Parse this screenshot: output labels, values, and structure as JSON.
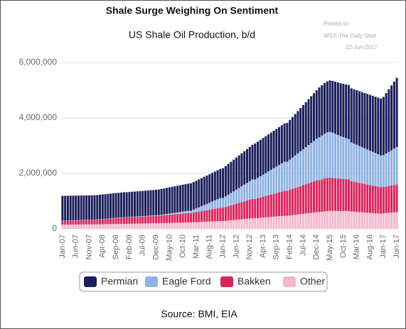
{
  "chart_data": {
    "type": "stacked-bar",
    "title": "Shale Surge Weighing On Sentiment",
    "subtitle": "US Shale Oil Production, b/d",
    "annotation": [
      "Posted on",
      "WSJ: The Daily Shot",
      "22-Jun-2017"
    ],
    "source": "Source: BMI, EIA",
    "categories": [
      "Jan-07",
      null,
      null,
      null,
      null,
      "Jun-07",
      null,
      null,
      null,
      null,
      "Nov-07",
      null,
      null,
      null,
      null,
      "Apr-08",
      null,
      null,
      null,
      null,
      "Sep-08",
      null,
      null,
      null,
      null,
      "Feb-09",
      null,
      null,
      null,
      null,
      "Jul-09",
      null,
      null,
      null,
      null,
      "Dec-09",
      null,
      null,
      null,
      null,
      "May-10",
      null,
      null,
      null,
      null,
      "Oct-10",
      null,
      null,
      null,
      null,
      "Mar-11",
      null,
      null,
      null,
      null,
      "Aug-11",
      null,
      null,
      null,
      null,
      "Jan-12",
      null,
      null,
      null,
      null,
      "Jun-12",
      null,
      null,
      null,
      null,
      "Nov-12",
      null,
      null,
      null,
      null,
      "Apr-13",
      null,
      null,
      null,
      null,
      "Sep-13",
      null,
      null,
      null,
      null,
      "Feb-14",
      null,
      null,
      null,
      null,
      "Jul-14",
      null,
      null,
      null,
      null,
      "Dec-14",
      null,
      null,
      null,
      null,
      "May-15",
      null,
      null,
      null,
      null,
      "Oct-15",
      null,
      null,
      null,
      null,
      "Mar-16",
      null,
      null,
      null,
      null,
      "Aug-16",
      null,
      null,
      null,
      null,
      "Jan-17",
      null,
      null,
      null,
      null,
      "Jun-17"
    ],
    "series": [
      {
        "name": "Permian",
        "color": "#1b1f5c",
        "values": [
          900000,
          898000,
          896000,
          895000,
          893000,
          891000,
          889000,
          887000,
          885000,
          884000,
          882000,
          880000,
          880000,
          882000,
          884000,
          885000,
          887000,
          889000,
          891000,
          893000,
          895000,
          896000,
          898000,
          900000,
          900000,
          902000,
          904000,
          905000,
          907000,
          909000,
          911000,
          913000,
          915000,
          916000,
          918000,
          920000,
          930000,
          935000,
          939000,
          944000,
          948000,
          953000,
          957000,
          962000,
          966000,
          971000,
          975000,
          980000,
          990000,
          995000,
          1001000,
          1006000,
          1012000,
          1017000,
          1023000,
          1028000,
          1034000,
          1039000,
          1045000,
          1050000,
          1080000,
          1095000,
          1111000,
          1126000,
          1142000,
          1157000,
          1173000,
          1188000,
          1204000,
          1219000,
          1235000,
          1250000,
          1300000,
          1307000,
          1315000,
          1322000,
          1329000,
          1336000,
          1344000,
          1351000,
          1358000,
          1365000,
          1373000,
          1380000,
          1400000,
          1432000,
          1464000,
          1495000,
          1527000,
          1559000,
          1591000,
          1623000,
          1655000,
          1686000,
          1718000,
          1750000,
          1800000,
          1814000,
          1827000,
          1841000,
          1855000,
          1868000,
          1882000,
          1895000,
          1909000,
          1923000,
          1936000,
          1950000,
          1950000,
          1959000,
          1968000,
          1977000,
          1986000,
          1995000,
          2005000,
          2014000,
          2023000,
          2032000,
          2041000,
          2050000,
          2100000,
          2180000,
          2260000,
          2340000,
          2420000,
          2500000
        ]
      },
      {
        "name": "Eagle Ford",
        "color": "#8fb3e2",
        "values": [
          10000,
          10000,
          10000,
          10000,
          10000,
          10000,
          10000,
          10000,
          10000,
          10000,
          10000,
          10000,
          10000,
          10000,
          10000,
          10000,
          10000,
          10000,
          10000,
          10000,
          10000,
          10000,
          10000,
          10000,
          10000,
          11000,
          12000,
          13000,
          14000,
          15000,
          15000,
          16000,
          17000,
          18000,
          19000,
          20000,
          20000,
          25000,
          31000,
          36000,
          42000,
          47000,
          53000,
          58000,
          64000,
          69000,
          75000,
          80000,
          80000,
          105000,
          129000,
          154000,
          178000,
          203000,
          227000,
          252000,
          276000,
          301000,
          325000,
          350000,
          350000,
          382000,
          414000,
          445000,
          477000,
          509000,
          541000,
          573000,
          605000,
          636000,
          668000,
          700000,
          700000,
          732000,
          764000,
          795000,
          827000,
          859000,
          891000,
          923000,
          955000,
          986000,
          1018000,
          1050000,
          1050000,
          1091000,
          1132000,
          1173000,
          1214000,
          1255000,
          1295000,
          1336000,
          1377000,
          1418000,
          1459000,
          1500000,
          1550000,
          1580000,
          1610000,
          1640000,
          1650000,
          1630000,
          1600000,
          1570000,
          1540000,
          1510000,
          1480000,
          1450000,
          1400000,
          1377000,
          1355000,
          1332000,
          1309000,
          1286000,
          1264000,
          1241000,
          1218000,
          1195000,
          1173000,
          1150000,
          1150000,
          1190000,
          1230000,
          1270000,
          1310000,
          1350000
        ]
      },
      {
        "name": "Bakken",
        "color": "#d8255c",
        "values": [
          130000,
          133000,
          135000,
          138000,
          141000,
          144000,
          146000,
          149000,
          152000,
          155000,
          157000,
          160000,
          160000,
          166000,
          173000,
          179000,
          185000,
          192000,
          198000,
          204000,
          211000,
          217000,
          224000,
          230000,
          230000,
          234000,
          237000,
          241000,
          245000,
          248000,
          252000,
          255000,
          259000,
          263000,
          266000,
          270000,
          270000,
          276000,
          283000,
          289000,
          295000,
          302000,
          308000,
          314000,
          321000,
          327000,
          334000,
          340000,
          340000,
          353000,
          365000,
          378000,
          391000,
          404000,
          416000,
          429000,
          442000,
          455000,
          467000,
          480000,
          480000,
          500000,
          520000,
          540000,
          560000,
          580000,
          600000,
          620000,
          640000,
          660000,
          680000,
          700000,
          700000,
          718000,
          736000,
          755000,
          773000,
          791000,
          809000,
          827000,
          845000,
          864000,
          882000,
          900000,
          900000,
          923000,
          945000,
          968000,
          991000,
          1014000,
          1036000,
          1059000,
          1082000,
          1105000,
          1127000,
          1150000,
          1150000,
          1170000,
          1190000,
          1200000,
          1200000,
          1190000,
          1180000,
          1170000,
          1160000,
          1155000,
          1150000,
          1150000,
          1100000,
          1086000,
          1073000,
          1059000,
          1045000,
          1032000,
          1018000,
          1005000,
          991000,
          977000,
          964000,
          950000,
          950000,
          960000,
          970000,
          980000,
          990000,
          1000000
        ]
      },
      {
        "name": "Other",
        "color": "#f6b7cc",
        "values": [
          150000,
          150000,
          151000,
          152000,
          153000,
          154000,
          155000,
          156000,
          157000,
          158000,
          159000,
          160000,
          160000,
          162000,
          164000,
          166000,
          167000,
          169000,
          171000,
          173000,
          175000,
          176000,
          178000,
          180000,
          180000,
          182000,
          184000,
          185000,
          187000,
          189000,
          191000,
          193000,
          195000,
          196000,
          198000,
          200000,
          200000,
          203000,
          205000,
          208000,
          211000,
          214000,
          216000,
          219000,
          222000,
          225000,
          227000,
          230000,
          230000,
          235000,
          239000,
          244000,
          248000,
          253000,
          257000,
          262000,
          266000,
          271000,
          275000,
          280000,
          280000,
          289000,
          298000,
          307000,
          316000,
          325000,
          335000,
          344000,
          353000,
          362000,
          371000,
          380000,
          380000,
          388000,
          396000,
          405000,
          413000,
          421000,
          429000,
          437000,
          445000,
          454000,
          462000,
          470000,
          470000,
          482000,
          494000,
          505000,
          517000,
          529000,
          541000,
          553000,
          565000,
          576000,
          588000,
          600000,
          600000,
          615000,
          630000,
          640000,
          650000,
          650000,
          648000,
          646000,
          645000,
          644000,
          642000,
          640000,
          620000,
          613000,
          607000,
          600000,
          594000,
          587000,
          581000,
          574000,
          568000,
          561000,
          555000,
          550000,
          560000,
          568000,
          576000,
          584000,
          592000,
          600000
        ]
      }
    ],
    "ylim": [
      0,
      6000000
    ],
    "yticks": [
      0,
      {
        "value": 2000000,
        "label": "2,000,000"
      },
      {
        "value": 4000000,
        "label": "4,000,000"
      },
      {
        "value": 6000000,
        "label": "6,000,000"
      }
    ],
    "legend": "bottom"
  }
}
